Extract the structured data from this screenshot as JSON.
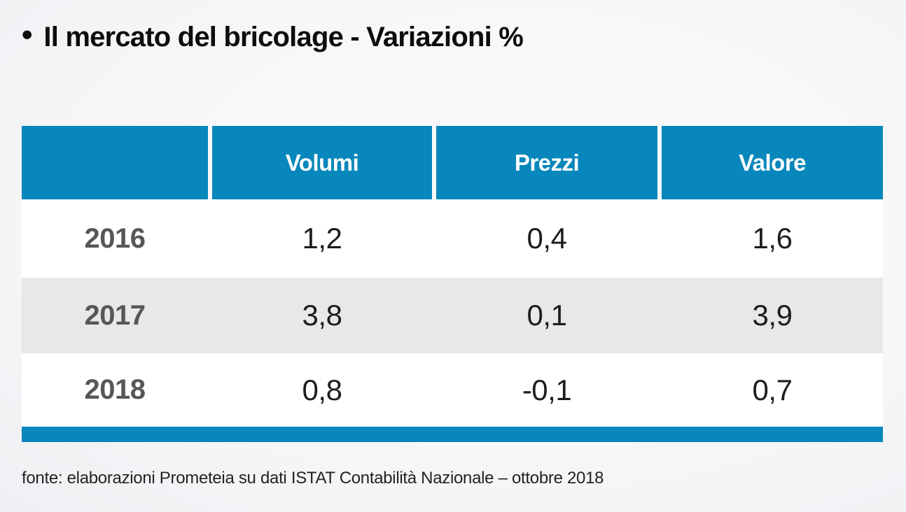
{
  "page": {
    "bullet": "•",
    "title": "Il mercato del bricolage - Variazioni %",
    "source": "fonte: elaborazioni Prometeia su dati ISTAT Contabilità Nazionale – ottobre 2018"
  },
  "colors": {
    "header_blue": "#0787bb",
    "alt_row_gray": "#e8e8ea",
    "year_label_gray": "#565759",
    "value_text": "#1d1d1f"
  },
  "table": {
    "headers": {
      "col1": "",
      "volumi": "Volumi",
      "prezzi": "Prezzi",
      "valore": "Valore"
    },
    "rows": [
      {
        "year": "2016",
        "volumi": "1,2",
        "prezzi": "0,4",
        "valore": "1,6"
      },
      {
        "year": "2017",
        "volumi": "3,8",
        "prezzi": "0,1",
        "valore": "3,9"
      },
      {
        "year": "2018",
        "volumi": "0,8",
        "prezzi": "-0,1",
        "valore": "0,7"
      }
    ]
  },
  "chart_data": {
    "type": "table",
    "title": "Il mercato del bricolage - Variazioni %",
    "columns": [
      "",
      "Volumi",
      "Prezzi",
      "Valore"
    ],
    "rows": [
      [
        "2016",
        1.2,
        0.4,
        1.6
      ],
      [
        "2017",
        3.8,
        0.1,
        3.9
      ],
      [
        "2018",
        0.8,
        -0.1,
        0.7
      ]
    ],
    "units": "percent variation",
    "source": "fonte: elaborazioni Prometeia su dati ISTAT Contabilità Nazionale – ottobre 2018"
  }
}
